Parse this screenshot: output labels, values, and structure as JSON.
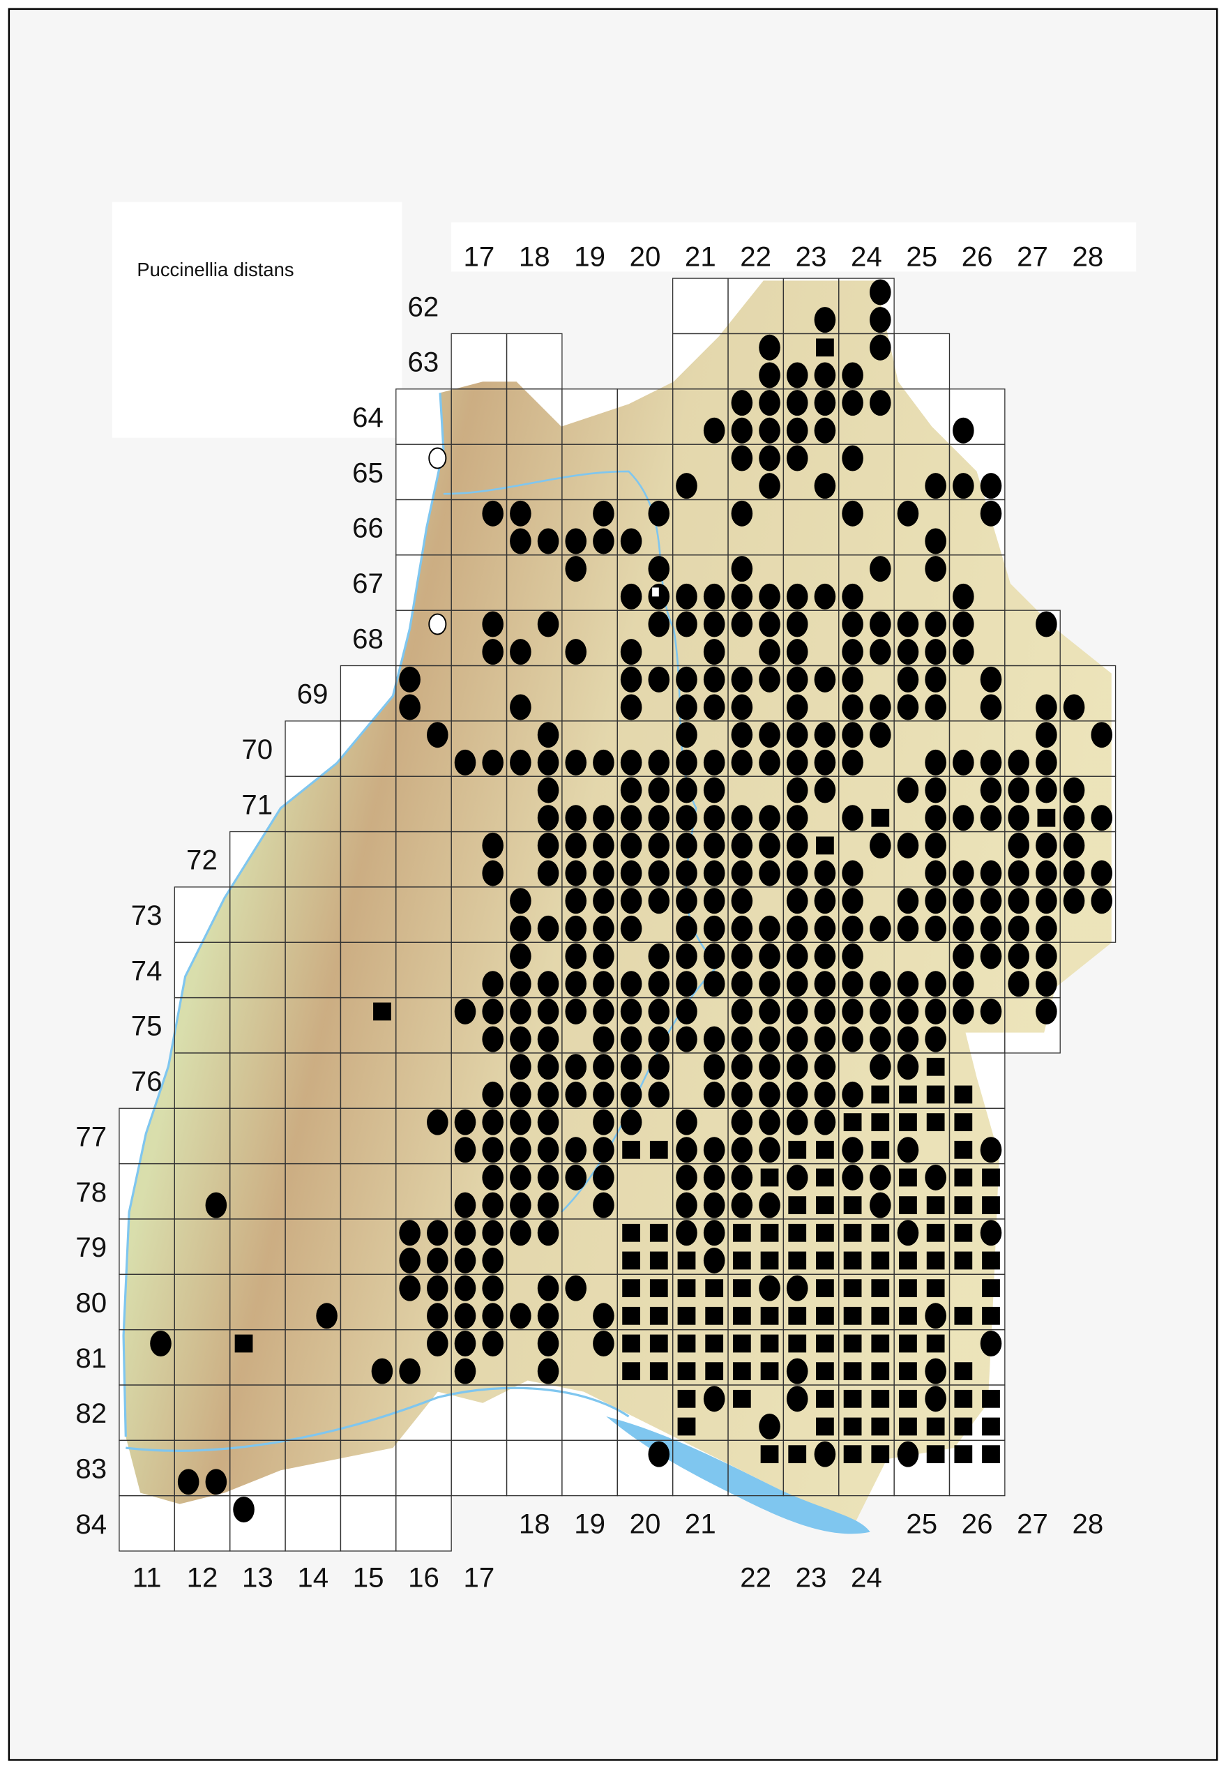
{
  "title": "Puccinellia distans",
  "colors": {
    "frame": "#000000",
    "background": "#f6f6f6",
    "cell": "#ffffff",
    "grid_line": "#333333",
    "lowland": "#c9dea0",
    "upland": "#e6dcae",
    "mountain": "#c9a97c",
    "water": "#7fc6ef",
    "marker": "#000000"
  },
  "legend_symbols": {
    "o": "filled-circle",
    "s": "filled-square",
    "c": "open-circle",
    "h": "half-filled-circle"
  },
  "top_column_labels": [
    "17",
    "18",
    "19",
    "20",
    "21",
    "22",
    "23",
    "24",
    "25",
    "26",
    "27",
    "28"
  ],
  "row_labels": [
    "62",
    "63",
    "64",
    "65",
    "66",
    "67",
    "68",
    "69",
    "70",
    "71",
    "72",
    "73",
    "74",
    "75",
    "76",
    "77",
    "78",
    "79",
    "80",
    "81",
    "82",
    "83",
    "84"
  ],
  "bottom_labels": [
    {
      "label": "18",
      "col": 18,
      "line": 1
    },
    {
      "label": "19",
      "col": 19,
      "line": 1
    },
    {
      "label": "20",
      "col": 20,
      "line": 1
    },
    {
      "label": "21",
      "col": 21,
      "line": 1
    },
    {
      "label": "25",
      "col": 25,
      "line": 1
    },
    {
      "label": "26",
      "col": 26,
      "line": 1
    },
    {
      "label": "27",
      "col": 27,
      "line": 1
    },
    {
      "label": "28",
      "col": 28,
      "line": 1
    },
    {
      "label": "11",
      "col": 11,
      "line": 2
    },
    {
      "label": "12",
      "col": 12,
      "line": 2
    },
    {
      "label": "13",
      "col": 13,
      "line": 2
    },
    {
      "label": "14",
      "col": 14,
      "line": 2
    },
    {
      "label": "15",
      "col": 15,
      "line": 2
    },
    {
      "label": "16",
      "col": 16,
      "line": 2
    },
    {
      "label": "17",
      "col": 17,
      "line": 2
    },
    {
      "label": "22",
      "col": 22,
      "line": 2
    },
    {
      "label": "23",
      "col": 23,
      "line": 2
    },
    {
      "label": "24",
      "col": 24,
      "line": 2
    }
  ],
  "grid_rows": [
    {
      "row": 62,
      "cols": [
        [
          21,
          24
        ]
      ]
    },
    {
      "row": 63,
      "cols": [
        [
          17,
          18
        ],
        [
          21,
          25
        ]
      ]
    },
    {
      "row": 64,
      "cols": [
        [
          16,
          26
        ]
      ]
    },
    {
      "row": 65,
      "cols": [
        [
          16,
          26
        ]
      ]
    },
    {
      "row": 66,
      "cols": [
        [
          16,
          26
        ]
      ]
    },
    {
      "row": 67,
      "cols": [
        [
          16,
          26
        ]
      ]
    },
    {
      "row": 68,
      "cols": [
        [
          16,
          27
        ]
      ]
    },
    {
      "row": 69,
      "cols": [
        [
          15,
          28
        ]
      ]
    },
    {
      "row": 70,
      "cols": [
        [
          14,
          28
        ]
      ]
    },
    {
      "row": 71,
      "cols": [
        [
          14,
          28
        ]
      ]
    },
    {
      "row": 72,
      "cols": [
        [
          13,
          28
        ]
      ]
    },
    {
      "row": 73,
      "cols": [
        [
          12,
          28
        ]
      ]
    },
    {
      "row": 74,
      "cols": [
        [
          12,
          27
        ]
      ]
    },
    {
      "row": 75,
      "cols": [
        [
          12,
          27
        ]
      ]
    },
    {
      "row": 76,
      "cols": [
        [
          12,
          26
        ]
      ]
    },
    {
      "row": 77,
      "cols": [
        [
          11,
          26
        ]
      ]
    },
    {
      "row": 78,
      "cols": [
        [
          11,
          26
        ]
      ]
    },
    {
      "row": 79,
      "cols": [
        [
          11,
          26
        ]
      ]
    },
    {
      "row": 80,
      "cols": [
        [
          11,
          26
        ]
      ]
    },
    {
      "row": 81,
      "cols": [
        [
          11,
          26
        ]
      ]
    },
    {
      "row": 82,
      "cols": [
        [
          11,
          26
        ]
      ]
    },
    {
      "row": 83,
      "cols": [
        [
          11,
          26
        ]
      ]
    },
    {
      "row": 84,
      "cols": [
        [
          11,
          16
        ]
      ]
    }
  ],
  "occurrences_note_units": "quadrant rows from grid row 62, quadrant columns from grid column 11",
  "occurrences": [
    {
      "q_row": 0,
      "o": [
        27
      ]
    },
    {
      "q_row": 1,
      "o": [
        25,
        27
      ]
    },
    {
      "q_row": 2,
      "o": [
        23,
        27
      ],
      "s": [
        25
      ]
    },
    {
      "q_row": 3,
      "o": [
        23,
        24,
        25,
        26
      ]
    },
    {
      "q_row": 4,
      "o": [
        22,
        23,
        24,
        25,
        26,
        27
      ]
    },
    {
      "q_row": 5,
      "o": [
        21,
        22,
        23,
        24,
        25,
        30
      ]
    },
    {
      "q_row": 6,
      "o": [
        22,
        23,
        24,
        26
      ],
      "c": [
        11
      ]
    },
    {
      "q_row": 7,
      "o": [
        20,
        23,
        25,
        29,
        30,
        31
      ]
    },
    {
      "q_row": 8,
      "o": [
        13,
        14,
        17,
        19,
        22,
        26,
        28,
        31
      ]
    },
    {
      "q_row": 9,
      "o": [
        14,
        15,
        16,
        17,
        18,
        29
      ]
    },
    {
      "q_row": 10,
      "o": [
        16,
        19,
        22,
        27,
        29
      ]
    },
    {
      "q_row": 11,
      "o": [
        18,
        20,
        21,
        22,
        23,
        24,
        25,
        26,
        30
      ],
      "h": [
        19
      ]
    },
    {
      "q_row": 12,
      "o": [
        13,
        15,
        19,
        20,
        21,
        22,
        23,
        24,
        26,
        27,
        28,
        29,
        30,
        33
      ],
      "c": [
        11
      ]
    },
    {
      "q_row": 13,
      "o": [
        13,
        14,
        16,
        18,
        21,
        23,
        24,
        26,
        27,
        28,
        29,
        30
      ]
    },
    {
      "q_row": 14,
      "o": [
        10,
        18,
        19,
        20,
        21,
        22,
        23,
        24,
        25,
        26,
        28,
        29,
        31
      ]
    },
    {
      "q_row": 15,
      "o": [
        10,
        14,
        18,
        20,
        21,
        22,
        24,
        26,
        27,
        28,
        29,
        31,
        33,
        34
      ]
    },
    {
      "q_row": 16,
      "o": [
        11,
        15,
        20,
        22,
        23,
        24,
        25,
        26,
        27,
        33,
        35
      ]
    },
    {
      "q_row": 17,
      "o": [
        12,
        13,
        14,
        15,
        16,
        17,
        18,
        19,
        20,
        21,
        22,
        23,
        24,
        25,
        26,
        29,
        30,
        31,
        32,
        33
      ]
    },
    {
      "q_row": 18,
      "o": [
        15,
        18,
        19,
        20,
        21,
        24,
        25,
        28,
        29,
        31,
        32,
        33,
        34
      ]
    },
    {
      "q_row": 19,
      "o": [
        15,
        16,
        17,
        18,
        19,
        20,
        21,
        22,
        23,
        24,
        26,
        29,
        30,
        31,
        32,
        34,
        35
      ],
      "s": [
        27,
        33
      ]
    },
    {
      "q_row": 20,
      "o": [
        13,
        15,
        16,
        17,
        18,
        19,
        20,
        21,
        22,
        23,
        24,
        27,
        28,
        29,
        32,
        33,
        34
      ],
      "s": [
        25
      ]
    },
    {
      "q_row": 21,
      "o": [
        13,
        15,
        16,
        17,
        18,
        19,
        20,
        21,
        22,
        23,
        24,
        25,
        26,
        29,
        30,
        31,
        32,
        33,
        34,
        35
      ]
    },
    {
      "q_row": 22,
      "o": [
        14,
        16,
        17,
        18,
        19,
        20,
        21,
        22,
        24,
        25,
        26,
        28,
        29,
        30,
        31,
        32,
        33,
        34,
        35
      ]
    },
    {
      "q_row": 23,
      "o": [
        14,
        15,
        16,
        17,
        18,
        20,
        21,
        22,
        23,
        24,
        25,
        26,
        27,
        28,
        29,
        30,
        31,
        32,
        33
      ]
    },
    {
      "q_row": 24,
      "o": [
        14,
        16,
        17,
        19,
        20,
        21,
        22,
        23,
        24,
        25,
        26,
        30,
        31,
        32,
        33
      ]
    },
    {
      "q_row": 25,
      "o": [
        13,
        14,
        15,
        16,
        17,
        18,
        19,
        20,
        21,
        22,
        23,
        24,
        25,
        26,
        27,
        28,
        29,
        30,
        32,
        33
      ]
    },
    {
      "q_row": 26,
      "o": [
        12,
        13,
        14,
        15,
        16,
        17,
        18,
        19,
        20,
        22,
        23,
        24,
        25,
        26,
        27,
        28,
        29,
        30,
        31,
        33
      ],
      "s": [
        9
      ]
    },
    {
      "q_row": 27,
      "o": [
        13,
        14,
        15,
        17,
        18,
        19,
        20,
        21,
        22,
        23,
        24,
        25,
        26,
        27,
        28,
        29
      ]
    },
    {
      "q_row": 28,
      "o": [
        14,
        15,
        16,
        17,
        18,
        19,
        21,
        22,
        23,
        24,
        25,
        27,
        28
      ],
      "s": [
        29
      ]
    },
    {
      "q_row": 29,
      "o": [
        13,
        14,
        15,
        16,
        17,
        18,
        19,
        21,
        22,
        23,
        24,
        25,
        26
      ],
      "s": [
        27,
        28,
        29,
        30
      ]
    },
    {
      "q_row": 30,
      "o": [
        11,
        12,
        13,
        14,
        15,
        17,
        18,
        20,
        22,
        23,
        24,
        25
      ],
      "s": [
        26,
        27,
        28,
        29,
        30
      ]
    },
    {
      "q_row": 31,
      "o": [
        12,
        13,
        14,
        15,
        16,
        17,
        20,
        21,
        22,
        23,
        26,
        28,
        31
      ],
      "s": [
        18,
        19,
        24,
        25,
        27,
        30
      ]
    },
    {
      "q_row": 32,
      "o": [
        13,
        14,
        15,
        16,
        17,
        20,
        21,
        22,
        24,
        26,
        27,
        29
      ],
      "s": [
        23,
        25,
        28,
        30,
        31
      ]
    },
    {
      "q_row": 33,
      "o": [
        3,
        12,
        13,
        14,
        15,
        17,
        20,
        21,
        22,
        23,
        27
      ],
      "s": [
        24,
        25,
        26,
        28,
        29,
        30,
        31
      ]
    },
    {
      "q_row": 34,
      "o": [
        10,
        11,
        12,
        13,
        14,
        15,
        20,
        21,
        28,
        31
      ],
      "s": [
        18,
        19,
        22,
        23,
        24,
        25,
        26,
        27,
        29,
        30
      ]
    },
    {
      "q_row": 35,
      "o": [
        10,
        11,
        12,
        13,
        21
      ],
      "s": [
        18,
        19,
        20,
        22,
        23,
        24,
        25,
        26,
        27,
        28,
        29,
        30,
        31
      ]
    },
    {
      "q_row": 36,
      "o": [
        10,
        11,
        12,
        13,
        15,
        16,
        23,
        24
      ],
      "s": [
        18,
        19,
        20,
        21,
        22,
        25,
        26,
        27,
        28,
        29,
        31
      ]
    },
    {
      "q_row": 37,
      "o": [
        7,
        11,
        12,
        13,
        14,
        15,
        17,
        29
      ],
      "s": [
        18,
        19,
        20,
        21,
        22,
        23,
        24,
        25,
        26,
        27,
        28,
        30,
        31
      ]
    },
    {
      "q_row": 38,
      "o": [
        1,
        11,
        12,
        13,
        15,
        17,
        31
      ],
      "s": [
        4,
        18,
        19,
        20,
        21,
        22,
        23,
        24,
        25,
        26,
        27,
        28,
        29
      ]
    },
    {
      "q_row": 39,
      "o": [
        9,
        10,
        12,
        15,
        24,
        29
      ],
      "s": [
        18,
        19,
        20,
        21,
        22,
        23,
        25,
        26,
        27,
        28,
        30
      ]
    },
    {
      "q_row": 40,
      "o": [
        21,
        24,
        29
      ],
      "s": [
        20,
        22,
        25,
        26,
        27,
        28,
        30,
        31
      ]
    },
    {
      "q_row": 41,
      "o": [
        23
      ],
      "s": [
        20,
        25,
        26,
        27,
        28,
        29,
        30,
        31
      ]
    },
    {
      "q_row": 42,
      "o": [
        19,
        25,
        28
      ],
      "s": [
        23,
        24,
        26,
        27,
        29,
        30,
        31
      ]
    },
    {
      "q_row": 43,
      "o": [
        2,
        3
      ]
    },
    {
      "q_row": 44,
      "o": [
        4
      ]
    }
  ]
}
